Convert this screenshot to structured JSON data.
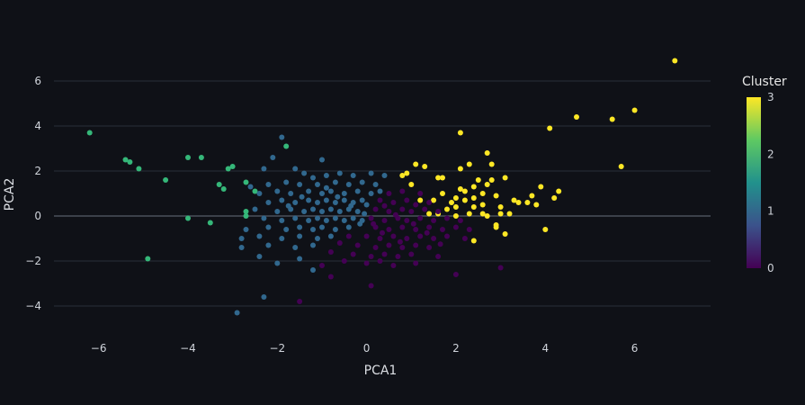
{
  "chart_data": {
    "type": "scatter",
    "title": "",
    "xlabel": "PCA1",
    "ylabel": "PCA2",
    "xlim": [
      -7.0,
      7.7
    ],
    "ylim": [
      -5.2,
      7.4
    ],
    "x_ticks": [
      -6,
      -4,
      -2,
      0,
      2,
      4,
      6
    ],
    "y_ticks": [
      -4,
      -2,
      0,
      2,
      4,
      6
    ],
    "x_tick_labels": [
      "−6",
      "−4",
      "−2",
      "0",
      "2",
      "4",
      "6"
    ],
    "y_tick_labels": [
      "−4",
      "−2",
      "0",
      "2",
      "4",
      "6"
    ],
    "grid": "horizontal",
    "zero_line": "y",
    "colorbar": {
      "title": "Cluster",
      "range": [
        0,
        3
      ],
      "ticks": [
        0,
        1,
        2,
        3
      ],
      "tick_labels": [
        "0",
        "1",
        "2",
        "3"
      ],
      "colorscale": [
        "#440154",
        "#3b528b",
        "#21918c",
        "#5ec962",
        "#fde725"
      ],
      "placement": "right"
    },
    "cluster_colors": {
      "0": "#440154",
      "1": "#31688e",
      "2": "#35b779",
      "3": "#fde725"
    },
    "points": [
      {
        "x": 6.9,
        "y": 6.9,
        "c": 3
      },
      {
        "x": 6.0,
        "y": 4.7,
        "c": 3
      },
      {
        "x": 5.5,
        "y": 4.3,
        "c": 3
      },
      {
        "x": 4.7,
        "y": 4.4,
        "c": 3
      },
      {
        "x": 4.1,
        "y": 3.9,
        "c": 3
      },
      {
        "x": 5.7,
        "y": 2.2,
        "c": 3
      },
      {
        "x": 2.1,
        "y": 3.7,
        "c": 3
      },
      {
        "x": 2.7,
        "y": 2.8,
        "c": 3
      },
      {
        "x": 2.8,
        "y": 2.3,
        "c": 3
      },
      {
        "x": 1.3,
        "y": 2.2,
        "c": 3
      },
      {
        "x": 1.1,
        "y": 2.3,
        "c": 3
      },
      {
        "x": 2.3,
        "y": 2.3,
        "c": 3
      },
      {
        "x": 2.1,
        "y": 2.1,
        "c": 3
      },
      {
        "x": 1.6,
        "y": 1.7,
        "c": 3
      },
      {
        "x": 1.7,
        "y": 1.7,
        "c": 3
      },
      {
        "x": 0.8,
        "y": 1.8,
        "c": 3
      },
      {
        "x": 2.5,
        "y": 1.6,
        "c": 3
      },
      {
        "x": 3.1,
        "y": 1.7,
        "c": 3
      },
      {
        "x": 2.8,
        "y": 1.6,
        "c": 3
      },
      {
        "x": 2.4,
        "y": 1.3,
        "c": 3
      },
      {
        "x": 2.7,
        "y": 1.4,
        "c": 3
      },
      {
        "x": 2.1,
        "y": 1.2,
        "c": 3
      },
      {
        "x": 2.2,
        "y": 1.1,
        "c": 3
      },
      {
        "x": 3.9,
        "y": 1.3,
        "c": 3
      },
      {
        "x": 4.3,
        "y": 1.1,
        "c": 3
      },
      {
        "x": 4.2,
        "y": 0.8,
        "c": 3
      },
      {
        "x": 3.7,
        "y": 0.9,
        "c": 3
      },
      {
        "x": 2.6,
        "y": 1.0,
        "c": 3
      },
      {
        "x": 2.9,
        "y": 0.9,
        "c": 3
      },
      {
        "x": 1.7,
        "y": 1.0,
        "c": 3
      },
      {
        "x": 2.0,
        "y": 0.8,
        "c": 3
      },
      {
        "x": 2.4,
        "y": 0.8,
        "c": 3
      },
      {
        "x": 2.2,
        "y": 0.7,
        "c": 3
      },
      {
        "x": 1.2,
        "y": 0.7,
        "c": 3
      },
      {
        "x": 1.9,
        "y": 0.6,
        "c": 3
      },
      {
        "x": 3.3,
        "y": 0.7,
        "c": 3
      },
      {
        "x": 3.4,
        "y": 0.6,
        "c": 3
      },
      {
        "x": 3.6,
        "y": 0.6,
        "c": 3
      },
      {
        "x": 3.8,
        "y": 0.5,
        "c": 3
      },
      {
        "x": 2.6,
        "y": 0.5,
        "c": 3
      },
      {
        "x": 2.4,
        "y": 0.4,
        "c": 3
      },
      {
        "x": 2.0,
        "y": 0.4,
        "c": 3
      },
      {
        "x": 1.8,
        "y": 0.3,
        "c": 3
      },
      {
        "x": 3.0,
        "y": 0.4,
        "c": 3
      },
      {
        "x": 3.2,
        "y": 0.1,
        "c": 3
      },
      {
        "x": 3.0,
        "y": 0.1,
        "c": 3
      },
      {
        "x": 2.3,
        "y": 0.1,
        "c": 3
      },
      {
        "x": 2.6,
        "y": 0.1,
        "c": 3
      },
      {
        "x": 2.7,
        "y": 0.0,
        "c": 3
      },
      {
        "x": 1.4,
        "y": 0.1,
        "c": 3
      },
      {
        "x": 1.6,
        "y": 0.1,
        "c": 3
      },
      {
        "x": 2.0,
        "y": 0.0,
        "c": 3
      },
      {
        "x": 2.9,
        "y": -0.4,
        "c": 3
      },
      {
        "x": 2.9,
        "y": -0.5,
        "c": 3
      },
      {
        "x": 3.1,
        "y": -0.8,
        "c": 3
      },
      {
        "x": 4.0,
        "y": -0.6,
        "c": 3
      },
      {
        "x": 2.4,
        "y": -1.1,
        "c": 3
      },
      {
        "x": 1.5,
        "y": 0.7,
        "c": 3
      },
      {
        "x": 0.9,
        "y": 1.9,
        "c": 3
      },
      {
        "x": 1.0,
        "y": 1.4,
        "c": 3
      },
      {
        "x": -6.2,
        "y": 3.7,
        "c": 2
      },
      {
        "x": -5.4,
        "y": 2.5,
        "c": 2
      },
      {
        "x": -5.3,
        "y": 2.4,
        "c": 2
      },
      {
        "x": -5.1,
        "y": 2.1,
        "c": 2
      },
      {
        "x": -4.5,
        "y": 1.6,
        "c": 2
      },
      {
        "x": -4.0,
        "y": 2.6,
        "c": 2
      },
      {
        "x": -3.7,
        "y": 2.6,
        "c": 2
      },
      {
        "x": -3.3,
        "y": 1.4,
        "c": 2
      },
      {
        "x": -3.2,
        "y": 1.2,
        "c": 2
      },
      {
        "x": -3.0,
        "y": 2.2,
        "c": 2
      },
      {
        "x": -3.1,
        "y": 2.1,
        "c": 2
      },
      {
        "x": -2.7,
        "y": 1.5,
        "c": 2
      },
      {
        "x": -2.5,
        "y": 1.1,
        "c": 2
      },
      {
        "x": -2.7,
        "y": 0.2,
        "c": 2
      },
      {
        "x": -2.7,
        "y": 0.0,
        "c": 2
      },
      {
        "x": -1.8,
        "y": 3.1,
        "c": 2
      },
      {
        "x": -3.5,
        "y": -0.3,
        "c": 2
      },
      {
        "x": -4.0,
        "y": -0.1,
        "c": 2
      },
      {
        "x": -4.9,
        "y": -1.9,
        "c": 2
      },
      {
        "x": -1.9,
        "y": 3.5,
        "c": 1
      },
      {
        "x": -2.1,
        "y": 2.6,
        "c": 1
      },
      {
        "x": -1.0,
        "y": 2.5,
        "c": 1
      },
      {
        "x": -2.3,
        "y": 2.1,
        "c": 1
      },
      {
        "x": -1.6,
        "y": 2.1,
        "c": 1
      },
      {
        "x": -1.4,
        "y": 1.9,
        "c": 1
      },
      {
        "x": -1.2,
        "y": 1.7,
        "c": 1
      },
      {
        "x": -0.9,
        "y": 1.8,
        "c": 1
      },
      {
        "x": -0.6,
        "y": 1.9,
        "c": 1
      },
      {
        "x": -0.3,
        "y": 1.8,
        "c": 1
      },
      {
        "x": 0.1,
        "y": 1.9,
        "c": 1
      },
      {
        "x": 0.4,
        "y": 1.8,
        "c": 1
      },
      {
        "x": -2.6,
        "y": 1.3,
        "c": 1
      },
      {
        "x": -2.2,
        "y": 1.4,
        "c": 1
      },
      {
        "x": -1.8,
        "y": 1.5,
        "c": 1
      },
      {
        "x": -1.5,
        "y": 1.4,
        "c": 1
      },
      {
        "x": -1.1,
        "y": 1.4,
        "c": 1
      },
      {
        "x": -0.7,
        "y": 1.5,
        "c": 1
      },
      {
        "x": -0.4,
        "y": 1.4,
        "c": 1
      },
      {
        "x": -0.1,
        "y": 1.5,
        "c": 1
      },
      {
        "x": 0.2,
        "y": 1.4,
        "c": 1
      },
      {
        "x": -2.4,
        "y": 1.0,
        "c": 1
      },
      {
        "x": -2.0,
        "y": 1.1,
        "c": 1
      },
      {
        "x": -1.7,
        "y": 1.0,
        "c": 1
      },
      {
        "x": -1.3,
        "y": 1.1,
        "c": 1
      },
      {
        "x": -1.0,
        "y": 1.0,
        "c": 1
      },
      {
        "x": -0.8,
        "y": 1.1,
        "c": 1
      },
      {
        "x": -0.5,
        "y": 1.0,
        "c": 1
      },
      {
        "x": -0.2,
        "y": 1.1,
        "c": 1
      },
      {
        "x": 0.1,
        "y": 1.0,
        "c": 1
      },
      {
        "x": 0.3,
        "y": 1.1,
        "c": 1
      },
      {
        "x": -2.2,
        "y": 0.6,
        "c": 1
      },
      {
        "x": -1.9,
        "y": 0.7,
        "c": 1
      },
      {
        "x": -1.6,
        "y": 0.6,
        "c": 1
      },
      {
        "x": -1.3,
        "y": 0.7,
        "c": 1
      },
      {
        "x": -1.1,
        "y": 0.6,
        "c": 1
      },
      {
        "x": -0.9,
        "y": 0.7,
        "c": 1
      },
      {
        "x": -0.7,
        "y": 0.6,
        "c": 1
      },
      {
        "x": -0.5,
        "y": 0.7,
        "c": 1
      },
      {
        "x": -0.3,
        "y": 0.6,
        "c": 1
      },
      {
        "x": -0.1,
        "y": 0.7,
        "c": 1
      },
      {
        "x": 0.0,
        "y": 0.5,
        "c": 1
      },
      {
        "x": -2.5,
        "y": 0.3,
        "c": 1
      },
      {
        "x": -2.0,
        "y": 0.2,
        "c": 1
      },
      {
        "x": -1.7,
        "y": 0.3,
        "c": 1
      },
      {
        "x": -1.4,
        "y": 0.2,
        "c": 1
      },
      {
        "x": -1.2,
        "y": 0.3,
        "c": 1
      },
      {
        "x": -1.0,
        "y": 0.2,
        "c": 1
      },
      {
        "x": -0.8,
        "y": 0.3,
        "c": 1
      },
      {
        "x": -0.6,
        "y": 0.2,
        "c": 1
      },
      {
        "x": -0.4,
        "y": 0.3,
        "c": 1
      },
      {
        "x": -0.2,
        "y": 0.2,
        "c": 1
      },
      {
        "x": -0.05,
        "y": 0.1,
        "c": 1
      },
      {
        "x": -2.3,
        "y": -0.1,
        "c": 1
      },
      {
        "x": -1.9,
        "y": -0.2,
        "c": 1
      },
      {
        "x": -1.6,
        "y": -0.1,
        "c": 1
      },
      {
        "x": -1.3,
        "y": -0.2,
        "c": 1
      },
      {
        "x": -1.1,
        "y": -0.1,
        "c": 1
      },
      {
        "x": -0.9,
        "y": -0.2,
        "c": 1
      },
      {
        "x": -0.7,
        "y": -0.1,
        "c": 1
      },
      {
        "x": -0.5,
        "y": -0.2,
        "c": 1
      },
      {
        "x": -0.3,
        "y": -0.1,
        "c": 1
      },
      {
        "x": -0.1,
        "y": -0.2,
        "c": 1
      },
      {
        "x": -2.7,
        "y": -0.6,
        "c": 1
      },
      {
        "x": -2.2,
        "y": -0.5,
        "c": 1
      },
      {
        "x": -1.8,
        "y": -0.6,
        "c": 1
      },
      {
        "x": -1.5,
        "y": -0.5,
        "c": 1
      },
      {
        "x": -1.2,
        "y": -0.6,
        "c": 1
      },
      {
        "x": -1.0,
        "y": -0.5,
        "c": 1
      },
      {
        "x": -0.7,
        "y": -0.6,
        "c": 1
      },
      {
        "x": -0.4,
        "y": -0.5,
        "c": 1
      },
      {
        "x": -2.8,
        "y": -1.0,
        "c": 1
      },
      {
        "x": -2.4,
        "y": -0.9,
        "c": 1
      },
      {
        "x": -1.9,
        "y": -1.0,
        "c": 1
      },
      {
        "x": -1.5,
        "y": -0.9,
        "c": 1
      },
      {
        "x": -1.1,
        "y": -1.0,
        "c": 1
      },
      {
        "x": -0.8,
        "y": -0.9,
        "c": 1
      },
      {
        "x": -2.8,
        "y": -1.4,
        "c": 1
      },
      {
        "x": -2.2,
        "y": -1.3,
        "c": 1
      },
      {
        "x": -1.6,
        "y": -1.4,
        "c": 1
      },
      {
        "x": -1.2,
        "y": -1.3,
        "c": 1
      },
      {
        "x": -2.4,
        "y": -1.8,
        "c": 1
      },
      {
        "x": -1.5,
        "y": -1.9,
        "c": 1
      },
      {
        "x": -2.0,
        "y": -2.1,
        "c": 1
      },
      {
        "x": -1.2,
        "y": -2.4,
        "c": 1
      },
      {
        "x": -2.3,
        "y": -3.6,
        "c": 1
      },
      {
        "x": -2.9,
        "y": -4.3,
        "c": 1
      },
      {
        "x": -0.9,
        "y": 1.25,
        "c": 1
      },
      {
        "x": -0.65,
        "y": 0.85,
        "c": 1
      },
      {
        "x": -0.35,
        "y": 0.45,
        "c": 1
      },
      {
        "x": -1.45,
        "y": 0.85,
        "c": 1
      },
      {
        "x": -1.75,
        "y": 0.45,
        "c": 1
      },
      {
        "x": -0.15,
        "y": -0.35,
        "c": 1
      },
      {
        "x": 0.5,
        "y": 1.0,
        "c": 0
      },
      {
        "x": 0.8,
        "y": 1.1,
        "c": 0
      },
      {
        "x": 1.2,
        "y": 1.0,
        "c": 0
      },
      {
        "x": 1.4,
        "y": 0.6,
        "c": 0
      },
      {
        "x": 0.3,
        "y": 0.7,
        "c": 0
      },
      {
        "x": 0.6,
        "y": 0.6,
        "c": 0
      },
      {
        "x": 0.9,
        "y": 0.7,
        "c": 0
      },
      {
        "x": 1.1,
        "y": 0.5,
        "c": 0
      },
      {
        "x": 0.2,
        "y": 0.3,
        "c": 0
      },
      {
        "x": 0.5,
        "y": 0.2,
        "c": 0
      },
      {
        "x": 0.8,
        "y": 0.3,
        "c": 0
      },
      {
        "x": 1.0,
        "y": 0.2,
        "c": 0
      },
      {
        "x": 1.3,
        "y": 0.3,
        "c": 0
      },
      {
        "x": 1.6,
        "y": 0.2,
        "c": 0
      },
      {
        "x": 0.1,
        "y": -0.1,
        "c": 0
      },
      {
        "x": 0.4,
        "y": -0.2,
        "c": 0
      },
      {
        "x": 0.7,
        "y": -0.1,
        "c": 0
      },
      {
        "x": 0.9,
        "y": -0.2,
        "c": 0
      },
      {
        "x": 1.2,
        "y": -0.1,
        "c": 0
      },
      {
        "x": 1.5,
        "y": -0.2,
        "c": 0
      },
      {
        "x": 1.8,
        "y": -0.1,
        "c": 0
      },
      {
        "x": 2.1,
        "y": -0.2,
        "c": 0
      },
      {
        "x": 0.2,
        "y": -0.5,
        "c": 0
      },
      {
        "x": 0.5,
        "y": -0.6,
        "c": 0
      },
      {
        "x": 0.8,
        "y": -0.5,
        "c": 0
      },
      {
        "x": 1.1,
        "y": -0.6,
        "c": 0
      },
      {
        "x": 1.4,
        "y": -0.5,
        "c": 0
      },
      {
        "x": 1.7,
        "y": -0.6,
        "c": 0
      },
      {
        "x": 2.0,
        "y": -0.5,
        "c": 0
      },
      {
        "x": 2.3,
        "y": -0.6,
        "c": 0
      },
      {
        "x": 0.0,
        "y": -0.9,
        "c": 0
      },
      {
        "x": 0.3,
        "y": -1.0,
        "c": 0
      },
      {
        "x": 0.6,
        "y": -0.9,
        "c": 0
      },
      {
        "x": 0.9,
        "y": -1.0,
        "c": 0
      },
      {
        "x": 1.2,
        "y": -0.9,
        "c": 0
      },
      {
        "x": 1.5,
        "y": -1.0,
        "c": 0
      },
      {
        "x": 1.8,
        "y": -0.9,
        "c": 0
      },
      {
        "x": 2.2,
        "y": -1.0,
        "c": 0
      },
      {
        "x": -0.4,
        "y": -0.9,
        "c": 0
      },
      {
        "x": -0.6,
        "y": -1.2,
        "c": 0
      },
      {
        "x": -0.2,
        "y": -1.3,
        "c": 0
      },
      {
        "x": 0.2,
        "y": -1.4,
        "c": 0
      },
      {
        "x": 0.5,
        "y": -1.3,
        "c": 0
      },
      {
        "x": 0.8,
        "y": -1.4,
        "c": 0
      },
      {
        "x": 1.1,
        "y": -1.3,
        "c": 0
      },
      {
        "x": 1.4,
        "y": -1.4,
        "c": 0
      },
      {
        "x": -0.8,
        "y": -1.6,
        "c": 0
      },
      {
        "x": -0.3,
        "y": -1.7,
        "c": 0
      },
      {
        "x": 0.1,
        "y": -1.8,
        "c": 0
      },
      {
        "x": 0.4,
        "y": -1.7,
        "c": 0
      },
      {
        "x": 0.7,
        "y": -1.8,
        "c": 0
      },
      {
        "x": 1.0,
        "y": -1.7,
        "c": 0
      },
      {
        "x": 1.6,
        "y": -1.8,
        "c": 0
      },
      {
        "x": -0.5,
        "y": -2.0,
        "c": 0
      },
      {
        "x": 0.0,
        "y": -2.1,
        "c": 0
      },
      {
        "x": 0.3,
        "y": -2.0,
        "c": 0
      },
      {
        "x": 0.6,
        "y": -2.2,
        "c": 0
      },
      {
        "x": 1.1,
        "y": -2.1,
        "c": 0
      },
      {
        "x": -1.0,
        "y": -2.2,
        "c": 0
      },
      {
        "x": -0.8,
        "y": -2.7,
        "c": 0
      },
      {
        "x": 2.0,
        "y": -2.6,
        "c": 0
      },
      {
        "x": 3.0,
        "y": -2.3,
        "c": 0
      },
      {
        "x": 0.1,
        "y": -3.1,
        "c": 0
      },
      {
        "x": -1.5,
        "y": -3.8,
        "c": 0
      },
      {
        "x": 0.4,
        "y": 0.45,
        "c": 0
      },
      {
        "x": 0.65,
        "y": 0.05,
        "c": 0
      },
      {
        "x": 1.05,
        "y": -0.35,
        "c": 0
      },
      {
        "x": 1.35,
        "y": -0.75,
        "c": 0
      },
      {
        "x": 0.35,
        "y": -0.75,
        "c": 0
      },
      {
        "x": 0.75,
        "y": -1.15,
        "c": 0
      },
      {
        "x": 1.65,
        "y": -1.25,
        "c": 0
      },
      {
        "x": 0.15,
        "y": -0.35,
        "c": 0
      }
    ]
  }
}
